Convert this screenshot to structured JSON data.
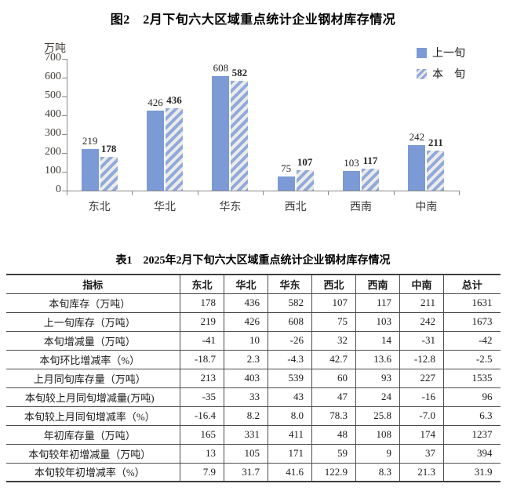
{
  "chart": {
    "title": "图2　2月下旬六大区域重点统计企业钢材库存情况",
    "unit_label": "万吨",
    "legend": [
      {
        "label": "上一旬",
        "style": "solid"
      },
      {
        "label": "本　旬",
        "style": "hatched"
      }
    ]
  },
  "chart_data": {
    "type": "bar",
    "categories": [
      "东北",
      "华北",
      "华东",
      "西北",
      "西南",
      "中南"
    ],
    "series": [
      {
        "name": "上一旬",
        "style": "solid",
        "values": [
          219,
          426,
          608,
          75,
          103,
          242
        ]
      },
      {
        "name": "本旬",
        "style": "hatched",
        "values": [
          178,
          436,
          582,
          107,
          117,
          211
        ]
      }
    ],
    "title": "图2　2月下旬六大区域重点统计企业钢材库存情况",
    "xlabel": "",
    "ylabel": "万吨",
    "ylim": [
      0,
      700
    ],
    "yticks": [
      0,
      100,
      200,
      300,
      400,
      500,
      600,
      700
    ],
    "grid": false,
    "legend_position": "top-right",
    "data_labels": true
  },
  "table": {
    "title": "表1　2025年2月下旬六大区域重点统计企业钢材库存情况",
    "headers": [
      "指标",
      "东北",
      "华北",
      "华东",
      "西北",
      "西南",
      "中南",
      "总计"
    ],
    "rows": [
      {
        "indicator": "本旬库存（万吨）",
        "values": [
          "178",
          "436",
          "582",
          "107",
          "117",
          "211",
          "1631"
        ]
      },
      {
        "indicator": "上一旬库存（万吨）",
        "values": [
          "219",
          "426",
          "608",
          "75",
          "103",
          "242",
          "1673"
        ]
      },
      {
        "indicator": "本旬增减量（万吨）",
        "values": [
          "-41",
          "10",
          "-26",
          "32",
          "14",
          "-31",
          "-42"
        ]
      },
      {
        "indicator": "本旬环比增减率（%）",
        "values": [
          "-18.7",
          "2.3",
          "-4.3",
          "42.7",
          "13.6",
          "-12.8",
          "-2.5"
        ]
      },
      {
        "indicator": "上月同旬库存量（万吨）",
        "values": [
          "213",
          "403",
          "539",
          "60",
          "93",
          "227",
          "1535"
        ]
      },
      {
        "indicator": "本旬较上月同旬增减量(万吨)",
        "values": [
          "-35",
          "33",
          "43",
          "47",
          "24",
          "-16",
          "96"
        ]
      },
      {
        "indicator": "本旬较上月同旬增减率（%）",
        "values": [
          "-16.4",
          "8.2",
          "8.0",
          "78.3",
          "25.8",
          "-7.0",
          "6.3"
        ]
      },
      {
        "indicator": "年初库存量（万吨）",
        "values": [
          "165",
          "331",
          "411",
          "48",
          "108",
          "174",
          "1237"
        ]
      },
      {
        "indicator": "本旬较年初增减量（万吨）",
        "values": [
          "13",
          "105",
          "171",
          "59",
          "9",
          "37",
          "394"
        ]
      },
      {
        "indicator": "本旬较年初增减率（%）",
        "values": [
          "7.9",
          "31.7",
          "41.6",
          "122.9",
          "8.3",
          "21.3",
          "31.9"
        ]
      }
    ]
  },
  "colors": {
    "bar_solid": "#7C9AD6",
    "bar_hatch_stripe": "#91A9DB",
    "bar_hatch_bg": "#EBEBE9",
    "axis": "#8A8A8A",
    "axis_text": "#44403B",
    "table_border": "#4D4D4D",
    "text": "#1A1A1A"
  }
}
